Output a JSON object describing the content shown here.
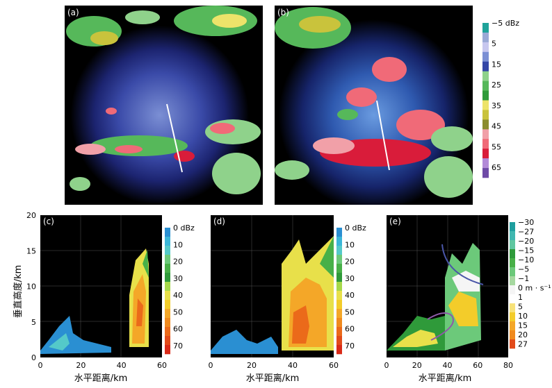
{
  "panels": {
    "a": {
      "label": "(a)"
    },
    "b": {
      "label": "(b)"
    },
    "c": {
      "label": "(c)"
    },
    "d": {
      "label": "(d)"
    },
    "e": {
      "label": "(e)"
    }
  },
  "colorbar_top": {
    "labels": [
      "−5 dBz",
      "5",
      "15",
      "25",
      "35",
      "45",
      "55",
      "65"
    ],
    "colors": [
      "#1fa39a",
      "#9aa9d6",
      "#c7c7ef",
      "#7b8fd4",
      "#3346a7",
      "#8fd28b",
      "#56b85a",
      "#2f9a3a",
      "#ede36a",
      "#c9c33c",
      "#8c8c2e",
      "#f1a0a8",
      "#f06a78",
      "#d91c3a",
      "#b38ad8",
      "#6e4aa6"
    ]
  },
  "colorbar_c": {
    "labels": [
      "0 dBz",
      "10",
      "20",
      "30",
      "40",
      "50",
      "60",
      "70"
    ],
    "colors": [
      "#2a8fd2",
      "#3bb6d8",
      "#54c9c9",
      "#6cc97a",
      "#48b048",
      "#2f9a3a",
      "#a6d84a",
      "#e8e04a",
      "#f3cc2a",
      "#f4a728",
      "#f08a1e",
      "#eb6a1a",
      "#e24b1a",
      "#d92a18"
    ]
  },
  "colorbar_d": {
    "labels": [
      "0 dBz",
      "10",
      "20",
      "30",
      "40",
      "50",
      "60",
      "70"
    ]
  },
  "colorbar_e": {
    "labels": [
      "−30",
      "−27",
      "−20",
      "−15",
      "−10",
      "−5",
      "−1",
      "0 m · s⁻¹",
      "1",
      "5",
      "10",
      "15",
      "20",
      "27"
    ],
    "colors": [
      "#1e9e9e",
      "#3fb7b0",
      "#5fc7a0",
      "#2f9a3a",
      "#48b048",
      "#6cc97a",
      "#a6d8a0",
      "#f5f5f5",
      "#ffffff",
      "#f7e27a",
      "#f3cc2a",
      "#f4a728",
      "#f08a1e",
      "#e24b1a"
    ]
  },
  "axes": {
    "ylabel": "垂直高度/km",
    "xlabel": "水平距离/km",
    "yticks": [
      "0",
      "5",
      "10",
      "15",
      "20"
    ],
    "xticks_c": [
      "0",
      "20",
      "40",
      "60"
    ],
    "xticks_d": [
      "0",
      "20",
      "40",
      "60"
    ],
    "xticks_e": [
      "0",
      "20",
      "40",
      "60",
      "80"
    ]
  }
}
